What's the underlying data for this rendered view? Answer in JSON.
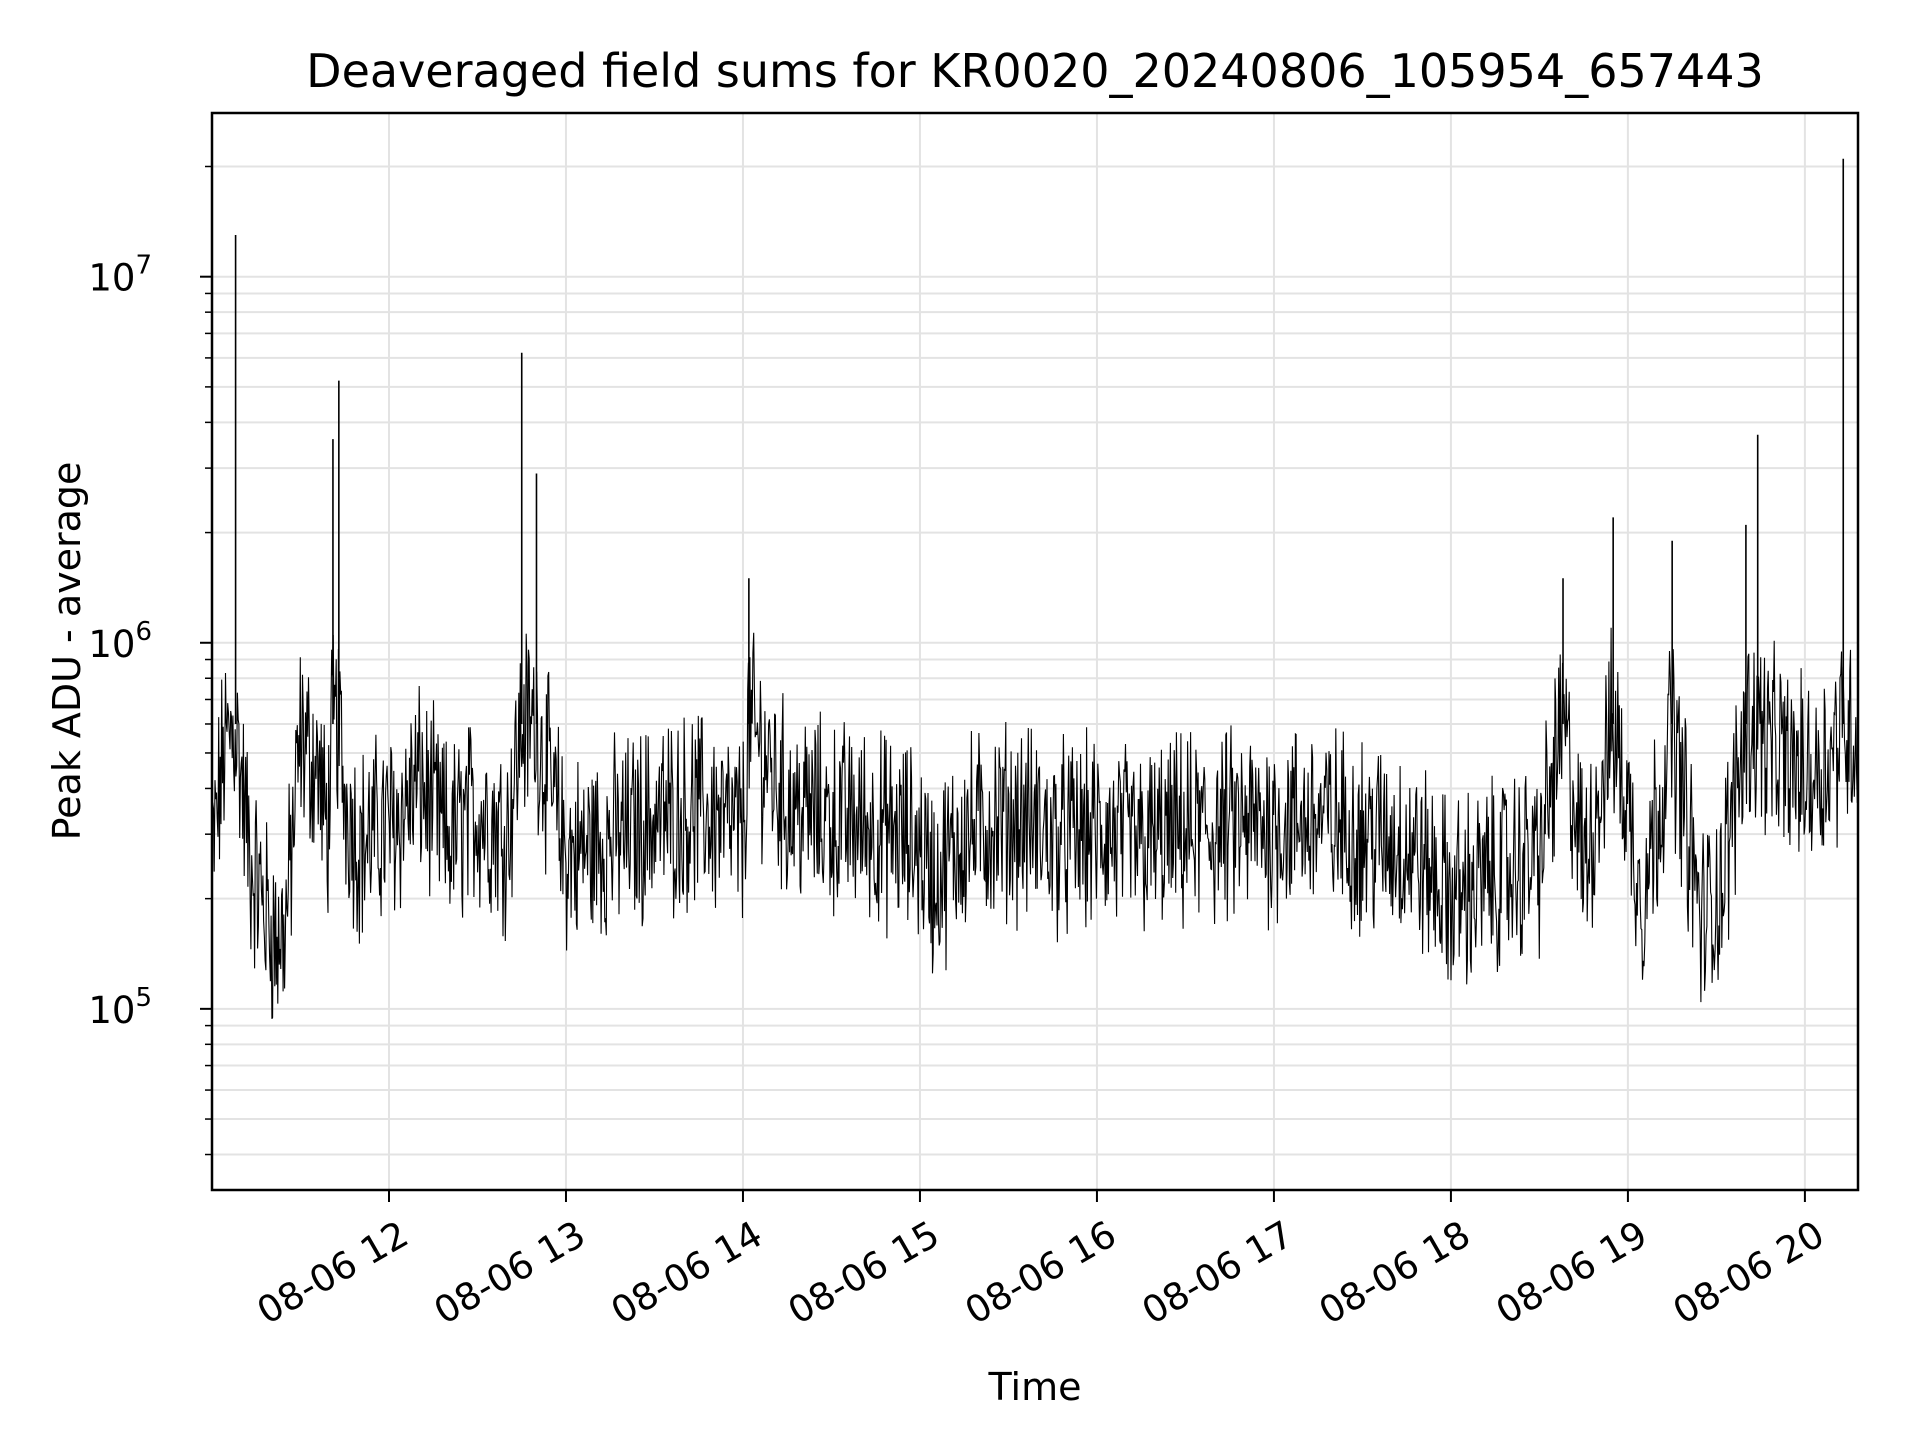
{
  "chart_data": {
    "type": "line",
    "title": "Deaveraged field sums for KR0020_20240806_105954_657443",
    "xlabel": "Time",
    "ylabel": "Peak ADU - average",
    "x_axis": {
      "kind": "datetime",
      "start": "2024-08-06T11:00",
      "end": "2024-08-06T20:18",
      "ticks": [
        {
          "value": "2024-08-06T12:00",
          "label": "08-06 12"
        },
        {
          "value": "2024-08-06T13:00",
          "label": "08-06 13"
        },
        {
          "value": "2024-08-06T14:00",
          "label": "08-06 14"
        },
        {
          "value": "2024-08-06T15:00",
          "label": "08-06 15"
        },
        {
          "value": "2024-08-06T16:00",
          "label": "08-06 16"
        },
        {
          "value": "2024-08-06T17:00",
          "label": "08-06 17"
        },
        {
          "value": "2024-08-06T18:00",
          "label": "08-06 18"
        },
        {
          "value": "2024-08-06T19:00",
          "label": "08-06 19"
        },
        {
          "value": "2024-08-06T20:00",
          "label": "08-06 20"
        }
      ]
    },
    "y_axis": {
      "scale": "log",
      "range": [
        32000,
        28000000
      ],
      "ticks": [
        {
          "value": 100000,
          "base": "10",
          "exp": "5"
        },
        {
          "value": 1000000,
          "base": "10",
          "exp": "6"
        },
        {
          "value": 10000000,
          "base": "10",
          "exp": "7"
        }
      ]
    },
    "grid": true,
    "line_color": "#000000",
    "series": [
      {
        "x": [
          "2024-08-06T11:00",
          "2024-08-06T11:04",
          "2024-08-06T11:08",
          "2024-08-06T11:13",
          "2024-08-06T11:17",
          "2024-08-06T11:22",
          "2024-08-06T11:25",
          "2024-08-06T11:30",
          "2024-08-06T11:36",
          "2024-08-06T11:39",
          "2024-08-06T11:41",
          "2024-08-06T11:43",
          "2024-08-06T11:45",
          "2024-08-06T11:50",
          "2024-08-06T11:55",
          "2024-08-06T12:03",
          "2024-08-06T12:10",
          "2024-08-06T12:20",
          "2024-08-06T12:30",
          "2024-08-06T12:40",
          "2024-08-06T12:45",
          "2024-08-06T12:50",
          "2024-08-06T13:00",
          "2024-08-06T13:10",
          "2024-08-06T13:20",
          "2024-08-06T13:30",
          "2024-08-06T13:45",
          "2024-08-06T14:00",
          "2024-08-06T14:02",
          "2024-08-06T14:15",
          "2024-08-06T14:30",
          "2024-08-06T14:42",
          "2024-08-06T14:50",
          "2024-08-06T15:00",
          "2024-08-06T15:05",
          "2024-08-06T15:15",
          "2024-08-06T15:30",
          "2024-08-06T15:38",
          "2024-08-06T15:45",
          "2024-08-06T16:00",
          "2024-08-06T16:15",
          "2024-08-06T16:30",
          "2024-08-06T16:45",
          "2024-08-06T17:00",
          "2024-08-06T17:15",
          "2024-08-06T17:30",
          "2024-08-06T17:45",
          "2024-08-06T18:00",
          "2024-08-06T18:15",
          "2024-08-06T18:30",
          "2024-08-06T18:38",
          "2024-08-06T18:45",
          "2024-08-06T18:55",
          "2024-08-06T19:05",
          "2024-08-06T19:15",
          "2024-08-06T19:25",
          "2024-08-06T19:32",
          "2024-08-06T19:40",
          "2024-08-06T19:44",
          "2024-08-06T19:50",
          "2024-08-06T20:00",
          "2024-08-06T20:08",
          "2024-08-06T20:13",
          "2024-08-06T20:18"
        ],
        "y": [
          250000,
          500000,
          13000000,
          250000,
          200000,
          150000,
          170000,
          550000,
          450000,
          300000,
          3600000,
          5200000,
          380000,
          280000,
          300000,
          330000,
          420000,
          290000,
          350000,
          300000,
          6200000,
          2900000,
          260000,
          280000,
          300000,
          330000,
          350000,
          300000,
          1500000,
          360000,
          330000,
          320000,
          300000,
          280000,
          220000,
          300000,
          330000,
          320000,
          290000,
          300000,
          280000,
          300000,
          310000,
          320000,
          330000,
          300000,
          280000,
          200000,
          230000,
          260000,
          1500000,
          240000,
          2200000,
          200000,
          1900000,
          170000,
          220000,
          2100000,
          3700000,
          500000,
          430000,
          480000,
          21000000,
          550000
        ]
      }
    ]
  }
}
